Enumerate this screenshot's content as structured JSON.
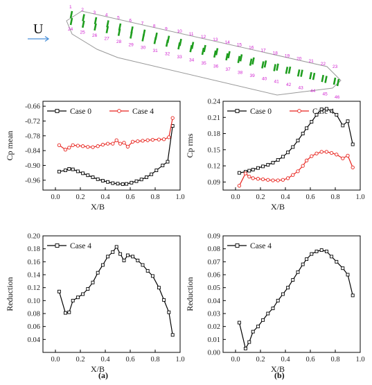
{
  "figure": {
    "flow_label": "U",
    "panel_labels": [
      "(a)",
      "(b)"
    ],
    "tap_numbers": [
      "1",
      "2",
      "3",
      "4",
      "5",
      "6",
      "7",
      "8",
      "9",
      "10",
      "11",
      "12",
      "13",
      "14",
      "15",
      "16",
      "17",
      "18",
      "19",
      "20",
      "21",
      "22",
      "23",
      "24",
      "25",
      "26",
      "27",
      "28",
      "29",
      "30",
      "31",
      "32",
      "33",
      "34",
      "35",
      "36",
      "37",
      "38",
      "39",
      "40",
      "41",
      "42",
      "43",
      "44",
      "45",
      "46"
    ],
    "colors": {
      "case0": "#000000",
      "case4_mean": "#e8221c",
      "tap": "#1f9e1f",
      "label": "#d020d0",
      "arrow": "#4a90d9"
    }
  },
  "chart_data": [
    {
      "id": "cp-mean",
      "type": "line",
      "xlabel": "X/B",
      "ylabel": "Cp mean",
      "xlim": [
        -0.1,
        1.0
      ],
      "ylim": [
        -1.0,
        -0.64
      ],
      "xticks": [
        "0.0",
        "0.2",
        "0.4",
        "0.6",
        "0.8",
        "1.0"
      ],
      "yticks": [
        "-0.66",
        "-0.72",
        "-0.78",
        "-0.84",
        "-0.90",
        "-0.96"
      ],
      "legend_position": "top",
      "series": [
        {
          "name": "Case 0",
          "color": "#000000",
          "marker": "square",
          "x": [
            0.03,
            0.08,
            0.11,
            0.14,
            0.18,
            0.22,
            0.26,
            0.3,
            0.34,
            0.38,
            0.42,
            0.46,
            0.5,
            0.54,
            0.57,
            0.61,
            0.65,
            0.69,
            0.73,
            0.77,
            0.81,
            0.86,
            0.9,
            0.94
          ],
          "y": [
            -0.925,
            -0.92,
            -0.914,
            -0.916,
            -0.924,
            -0.932,
            -0.94,
            -0.948,
            -0.956,
            -0.962,
            -0.967,
            -0.972,
            -0.974,
            -0.976,
            -0.975,
            -0.97,
            -0.964,
            -0.957,
            -0.948,
            -0.936,
            -0.92,
            -0.9,
            -0.885,
            -0.74
          ]
        },
        {
          "name": "Case 4",
          "color": "#e8221c",
          "marker": "circle",
          "x": [
            0.03,
            0.08,
            0.11,
            0.14,
            0.18,
            0.22,
            0.26,
            0.3,
            0.34,
            0.38,
            0.42,
            0.46,
            0.49,
            0.52,
            0.55,
            0.58,
            0.62,
            0.66,
            0.7,
            0.74,
            0.78,
            0.83,
            0.87,
            0.91,
            0.94
          ],
          "y": [
            -0.818,
            -0.836,
            -0.828,
            -0.818,
            -0.82,
            -0.822,
            -0.825,
            -0.826,
            -0.822,
            -0.816,
            -0.812,
            -0.812,
            -0.798,
            -0.812,
            -0.808,
            -0.824,
            -0.804,
            -0.802,
            -0.8,
            -0.798,
            -0.796,
            -0.795,
            -0.794,
            -0.786,
            -0.708
          ]
        }
      ]
    },
    {
      "id": "cp-rms",
      "type": "line",
      "xlabel": "X/B",
      "ylabel": "Cp rms",
      "xlim": [
        -0.1,
        1.0
      ],
      "ylim": [
        0.075,
        0.24
      ],
      "xticks": [
        "0.0",
        "0.2",
        "0.4",
        "0.6",
        "0.8",
        "1.0"
      ],
      "yticks": [
        "0.09",
        "0.12",
        "0.15",
        "0.18",
        "0.21",
        "0.24"
      ],
      "legend_position": "top",
      "series": [
        {
          "name": "Case 0",
          "color": "#000000",
          "marker": "square",
          "x": [
            0.03,
            0.08,
            0.11,
            0.14,
            0.18,
            0.22,
            0.26,
            0.3,
            0.34,
            0.38,
            0.42,
            0.46,
            0.5,
            0.54,
            0.57,
            0.61,
            0.65,
            0.69,
            0.73,
            0.77,
            0.81,
            0.86,
            0.9,
            0.94
          ],
          "y": [
            0.107,
            0.109,
            0.111,
            0.113,
            0.116,
            0.119,
            0.122,
            0.126,
            0.131,
            0.137,
            0.145,
            0.155,
            0.167,
            0.18,
            0.19,
            0.202,
            0.215,
            0.225,
            0.226,
            0.222,
            0.215,
            0.195,
            0.203,
            0.16
          ]
        },
        {
          "name": "Case 4",
          "color": "#e8221c",
          "marker": "circle",
          "x": [
            0.03,
            0.08,
            0.11,
            0.14,
            0.18,
            0.22,
            0.26,
            0.3,
            0.34,
            0.38,
            0.42,
            0.46,
            0.5,
            0.54,
            0.57,
            0.61,
            0.65,
            0.69,
            0.73,
            0.77,
            0.81,
            0.86,
            0.9,
            0.94
          ],
          "y": [
            0.083,
            0.106,
            0.1,
            0.097,
            0.096,
            0.095,
            0.094,
            0.093,
            0.093,
            0.094,
            0.097,
            0.103,
            0.11,
            0.12,
            0.13,
            0.138,
            0.143,
            0.146,
            0.146,
            0.144,
            0.141,
            0.134,
            0.139,
            0.117
          ]
        }
      ]
    },
    {
      "id": "reduction-mean",
      "type": "line",
      "xlabel": "X/B",
      "ylabel": "Reduction",
      "xlim": [
        -0.1,
        1.0
      ],
      "ylim": [
        0.02,
        0.2
      ],
      "xticks": [
        "0.0",
        "0.2",
        "0.4",
        "0.6",
        "0.8",
        "1.0"
      ],
      "yticks": [
        "0.20",
        "0.18",
        "0.16",
        "0.14",
        "0.12",
        "0.10",
        "0.08",
        "0.06",
        "0.04"
      ],
      "legend_position": "top-left",
      "series": [
        {
          "name": "Case 4",
          "color": "#000000",
          "marker": "square",
          "x": [
            0.03,
            0.08,
            0.11,
            0.14,
            0.18,
            0.22,
            0.26,
            0.3,
            0.34,
            0.38,
            0.42,
            0.46,
            0.49,
            0.52,
            0.55,
            0.58,
            0.62,
            0.66,
            0.7,
            0.74,
            0.78,
            0.83,
            0.87,
            0.91,
            0.94
          ],
          "y": [
            0.114,
            0.081,
            0.082,
            0.1,
            0.105,
            0.11,
            0.118,
            0.128,
            0.143,
            0.155,
            0.168,
            0.175,
            0.183,
            0.172,
            0.162,
            0.17,
            0.168,
            0.162,
            0.155,
            0.146,
            0.138,
            0.12,
            0.101,
            0.082,
            0.047
          ]
        }
      ]
    },
    {
      "id": "reduction-rms",
      "type": "line",
      "xlabel": "X/B",
      "ylabel": "Reduction",
      "xlim": [
        -0.1,
        1.0
      ],
      "ylim": [
        0.0,
        0.09
      ],
      "xticks": [
        "0.0",
        "0.2",
        "0.4",
        "0.6",
        "0.8",
        "1.0"
      ],
      "yticks": [
        "0.00",
        "0.01",
        "0.02",
        "0.03",
        "0.04",
        "0.05",
        "0.06",
        "0.07",
        "0.08",
        "0.09"
      ],
      "legend_position": "top-left",
      "series": [
        {
          "name": "Case 4",
          "color": "#000000",
          "marker": "square",
          "x": [
            0.03,
            0.08,
            0.11,
            0.14,
            0.18,
            0.22,
            0.26,
            0.3,
            0.34,
            0.38,
            0.42,
            0.46,
            0.5,
            0.54,
            0.57,
            0.61,
            0.65,
            0.69,
            0.73,
            0.77,
            0.81,
            0.86,
            0.9,
            0.94
          ],
          "y": [
            0.023,
            0.003,
            0.008,
            0.016,
            0.02,
            0.025,
            0.03,
            0.034,
            0.04,
            0.045,
            0.05,
            0.056,
            0.062,
            0.068,
            0.072,
            0.076,
            0.078,
            0.079,
            0.078,
            0.074,
            0.07,
            0.065,
            0.06,
            0.044
          ]
        }
      ]
    }
  ]
}
